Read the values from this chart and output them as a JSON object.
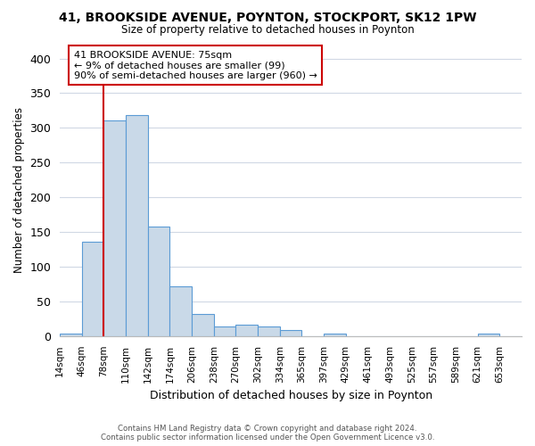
{
  "title": "41, BROOKSIDE AVENUE, POYNTON, STOCKPORT, SK12 1PW",
  "subtitle": "Size of property relative to detached houses in Poynton",
  "xlabel": "Distribution of detached houses by size in Poynton",
  "ylabel": "Number of detached properties",
  "footer_line1": "Contains HM Land Registry data © Crown copyright and database right 2024.",
  "footer_line2": "Contains public sector information licensed under the Open Government Licence v3.0.",
  "bin_labels": [
    "14sqm",
    "46sqm",
    "78sqm",
    "110sqm",
    "142sqm",
    "174sqm",
    "206sqm",
    "238sqm",
    "270sqm",
    "302sqm",
    "334sqm",
    "365sqm",
    "397sqm",
    "429sqm",
    "461sqm",
    "493sqm",
    "525sqm",
    "557sqm",
    "589sqm",
    "621sqm",
    "653sqm"
  ],
  "bar_heights": [
    3,
    136,
    311,
    318,
    158,
    72,
    32,
    14,
    16,
    14,
    9,
    0,
    4,
    0,
    0,
    0,
    0,
    0,
    0,
    3,
    0
  ],
  "ylim": [
    0,
    420
  ],
  "yticks": [
    0,
    50,
    100,
    150,
    200,
    250,
    300,
    350,
    400
  ],
  "bar_color": "#c9d9e8",
  "bar_edge_color": "#5b9bd5",
  "property_line_x": 2,
  "annotation_title": "41 BROOKSIDE AVENUE: 75sqm",
  "annotation_line1": "← 9% of detached houses are smaller (99)",
  "annotation_line2": "90% of semi-detached houses are larger (960) →",
  "red_line_color": "#cc0000",
  "background_color": "#ffffff",
  "grid_color": "#d0d8e4"
}
